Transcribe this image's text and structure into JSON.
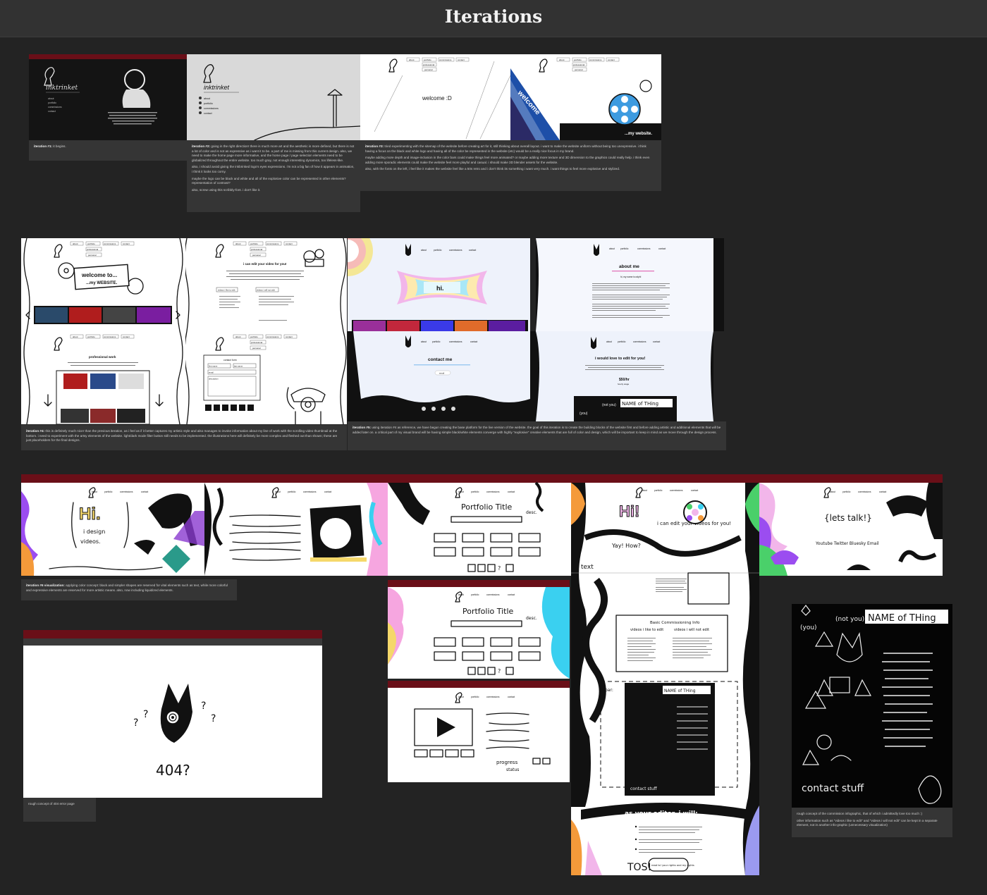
{
  "page": {
    "title": "Iterations"
  },
  "nav": {
    "about": "about",
    "portfolio": "portfolio",
    "commissions": "commissions",
    "contact": "contact",
    "professional": "professional",
    "personal": "personal"
  },
  "iterations": {
    "i1": {
      "label": "iteration #1:",
      "text": "it begins."
    },
    "i2": {
      "label": "iteration #2:",
      "p1": "going in the right direction! there is much more art and the aesthetic is more defined, but there is not a lot of color and is not as expressive as i want it to be. a part of me is missing from this current design. also, we need to make the home page more informative, and the home page / page selection elements need to be globalized throughout the entire website. too much gray, not enough interesting dynamics, too lifeless-like.",
      "p2": "also, i should avoid giving the inkbrinked logo's eyes expressions. i'm not a big fan of how it appears in animation, i think it looks too corny.",
      "p3": "maybe the logo can be black and white and all of the explosive color can be represented in other elements? representation of contrast?",
      "p4": "also, screw using this scribbly-font. i don't like it."
    },
    "i3": {
      "label": "iteration #3:",
      "p1": "tried experimenting with the sitemap of the website before creating art for it, still thinking about overall layout. i want to make the website uniform without being too unexpressive. i think having a focus on the black and white logo and having all of the color be represented in the website (etc) would be a really nice focus in my brand.",
      "p2": "maybe adding more depth and image-inclusion in the color bars could make things feel more animated? or maybe adding more texture and 3D dimension to the graphics could really help. i think even adding more sporadic elements could make the website feel more playful and casual. i should make 3D blender assets for the website.",
      "p3": "also, with the fonts on the left, i feel like it makes the website feel like a 50s retro and i don't think its something i want very much. i want things to feel more explosive and stylized."
    },
    "i4": {
      "label": "iteration #4:",
      "text": "this is definitely much nicer than the previous iteration, as i feel as if it better captures my artistic style and also manages to invoke information about my line of work with the scrolling video thumbnail at the bottom. i need to experiment with the artsy elements of the website. light/dark mode filter button still needs to be implemented. the illustrations here will definitely be more complex and fleshed out than shown; these are just placeholders for the final designs."
    },
    "i5": {
      "label": "iteration #5:",
      "text": "using iteration #4 as reference, we have begun creating the base platform for the live version of the website. the goal of this iteration is to create the building blocks of the website first and before adding artistic and additional elements that will be added later on. a critical part of my visual brand will be having simple black/white elements converge with highly \"explosive\" creative elements that are full of color and design, which will be important to keep in mind as we move through the design process."
    },
    "i6": {
      "label": "iteration #6 visualization:",
      "text": "applying color concept: black and simpler shapes are reserved for vital elements such as text, while more colorful and expressive elements are reserved for more artistic means. also, now including liquidized elements."
    },
    "err": {
      "text": "rough concept of 404 error page"
    },
    "info": {
      "p1": "rough concept of the commission infographic, that of which i admittedly love too much :)",
      "p2": "other information such as \"videos i like to edit\" and \"videos i will not edit\" can be kept in a separate element, not in another info-graphic (unnecessary visualization)"
    }
  },
  "mock": {
    "logo_word": "inktrinket",
    "welcome_d": "welcome :D",
    "welcome": "welcome",
    "my_website": "...my website.",
    "welcome_to": "welcome to...",
    "my_website_caps": "...my WEBSITE.",
    "edit_heading": "i can edit your video for you!",
    "videos_i_edit": "videos i like to edit",
    "videos_not_edit": "videos i will not edit",
    "professional_work": "professional work",
    "contact_form": "contact form",
    "first_name": "first name",
    "last_name": "last name",
    "email": "email",
    "description": "description",
    "hi": "hi.",
    "about_me": "about me",
    "my_name": "hi, my name is ralph!",
    "contact_me": "contact me",
    "would_love": "i would love to edit for you!",
    "price": "$50/hr",
    "hourly": "hourly wage",
    "name_of_thing": "NAME of THing",
    "not_you": "(not you)",
    "you": "(you)",
    "big_hi": "Hi.",
    "i_design": "i design",
    "videos_word": "videos.",
    "portfolio_title": "Portfolio Title",
    "desc": "desc.",
    "lets_talk": "{lets talk!}",
    "socials": "Youtube Twitter Bluesky Email",
    "hi_excl": "Hi!",
    "i_can_edit": "i can edit your videos for you!",
    "yay_how": "Yay! How?",
    "text": "text",
    "basic_info": "Basic Commissioning Info",
    "not_edit": "videos i will not edit",
    "like_edit": "videos i like to edit",
    "bar": "bar:",
    "contact_stuff": "contact stuff",
    "as_editor": "as your editor, i will:",
    "tos": "TOS!",
    "read_tos": "read ts! your rights and my rights",
    "progress": "progress",
    "status": "status",
    "err_code": "404?",
    "qmarks": "?"
  }
}
